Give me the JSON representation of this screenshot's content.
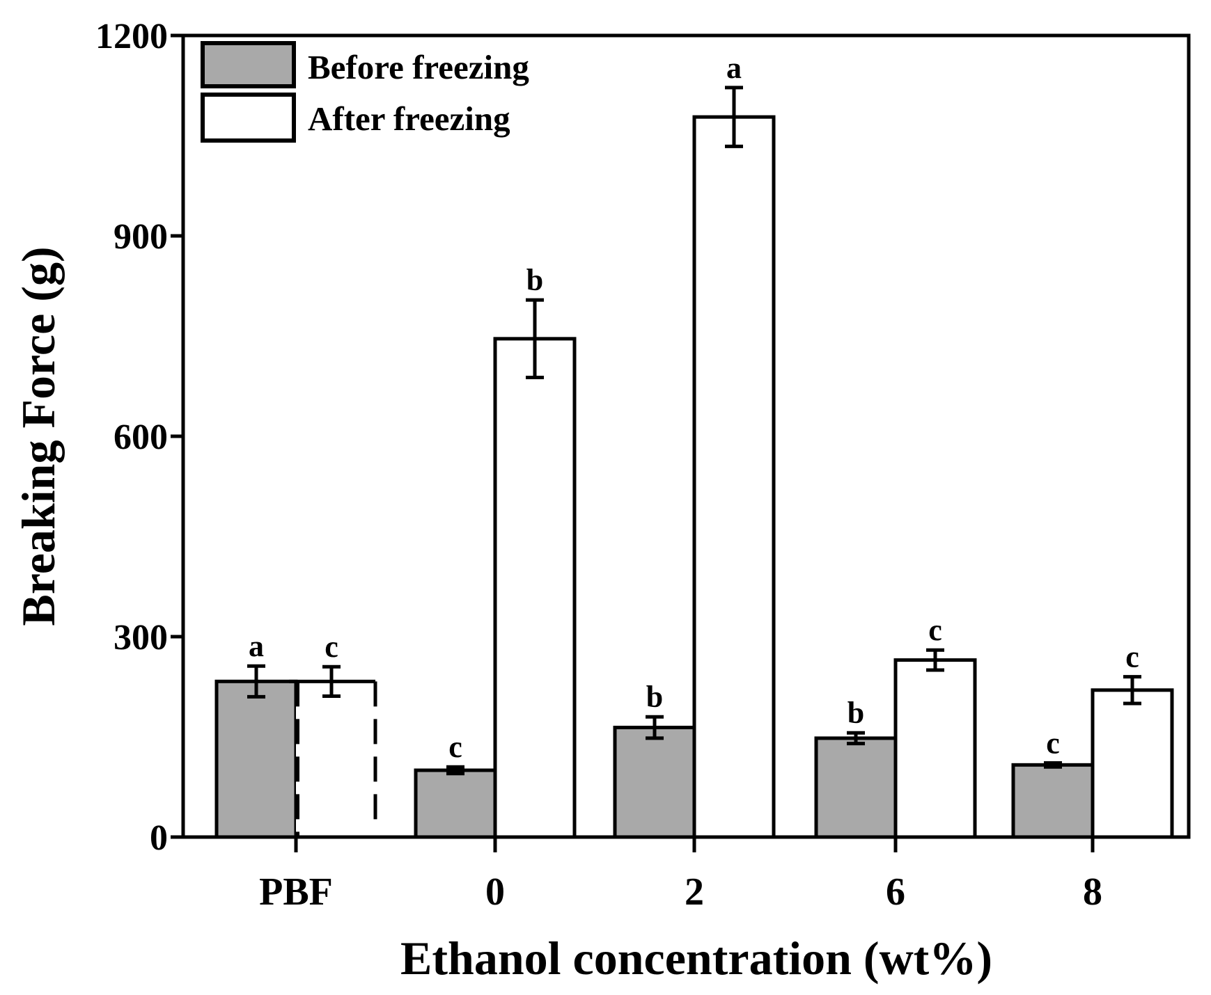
{
  "chart_data": {
    "type": "bar",
    "title": "",
    "xlabel": "Ethanol concentration (wt%)",
    "ylabel": "Breaking Force (g)",
    "ylim": [
      0,
      1200
    ],
    "yticks": [
      0,
      300,
      600,
      900,
      1200
    ],
    "grid": false,
    "legend_position": "top-left",
    "categories": [
      "PBF",
      "0",
      "2",
      "6",
      "8"
    ],
    "series": [
      {
        "name": "Before freezing",
        "color": "#a9a9a9",
        "values": [
          233,
          100,
          164,
          148,
          108
        ],
        "errors": [
          23,
          5,
          16,
          8,
          3
        ],
        "letters": [
          "a",
          "c",
          "b",
          "b",
          "c"
        ]
      },
      {
        "name": "After freezing",
        "color": "#ffffff",
        "values": [
          233,
          746,
          1078,
          265,
          220
        ],
        "errors": [
          22,
          58,
          44,
          15,
          20
        ],
        "letters": [
          "c",
          "b",
          "a",
          "c",
          "c"
        ],
        "dashed": [
          true,
          false,
          false,
          false,
          false
        ]
      }
    ]
  }
}
